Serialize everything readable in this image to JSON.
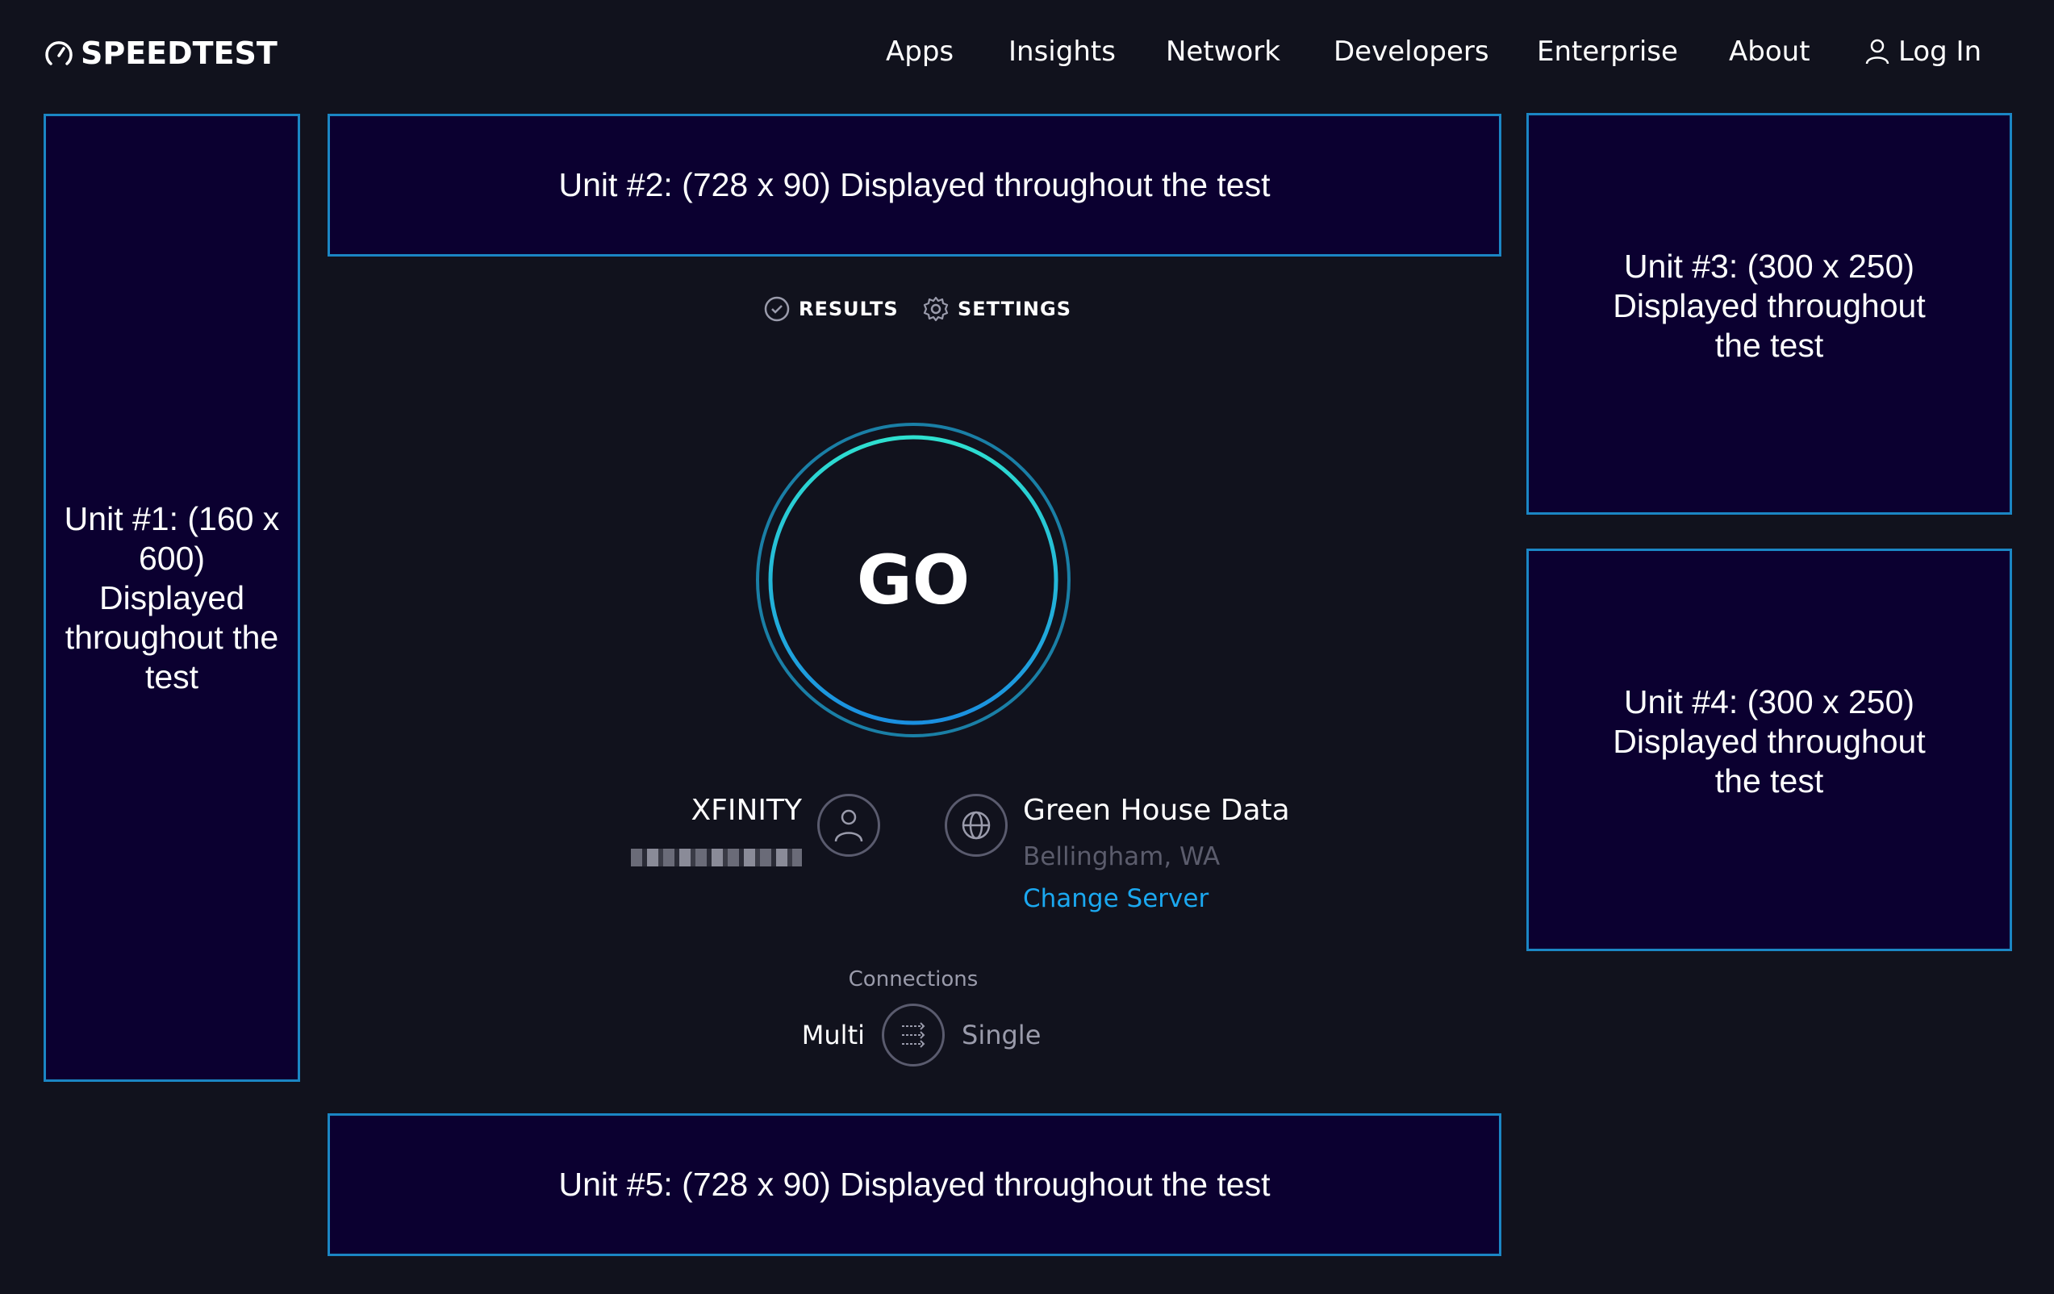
{
  "header": {
    "logo": "SPEEDTEST",
    "nav": [
      "Apps",
      "Insights",
      "Network",
      "Developers",
      "Enterprise",
      "About"
    ],
    "login": "Log In"
  },
  "ads": {
    "unit1": "Unit #1: (160 x 600) Displayed throughout the test",
    "unit2": "Unit #2: (728 x 90) Displayed throughout the test",
    "unit3": "Unit #3: (300 x 250) Displayed throughout the test",
    "unit4": "Unit #4: (300 x 250) Displayed throughout the test",
    "unit5": "Unit #5: (728 x 90) Displayed throughout the test"
  },
  "tabs": {
    "results": "RESULTS",
    "settings": "SETTINGS"
  },
  "go": "GO",
  "isp": {
    "name": "XFINITY",
    "ip_redacted": true
  },
  "server": {
    "name": "Green House Data",
    "location": "Bellingham, WA",
    "change": "Change Server"
  },
  "connections": {
    "label": "Connections",
    "multi": "Multi",
    "single": "Single",
    "selected": "Multi"
  },
  "colors": {
    "background": "#11121d",
    "ad_border": "#1b86c4",
    "ad_bg": "#0b0030",
    "link": "#1ba8f0"
  }
}
